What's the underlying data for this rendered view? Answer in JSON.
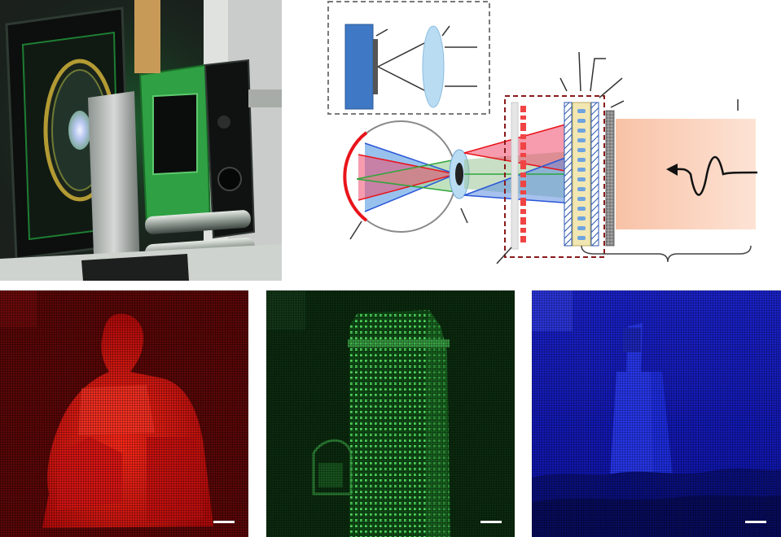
{
  "figure": {
    "panels": [
      {
        "id": "photo",
        "content": "prototype-photo"
      },
      {
        "id": "diagram",
        "content": "optical-schematic"
      },
      {
        "id": "img-red",
        "content": "statue-hologram"
      },
      {
        "id": "img-green",
        "content": "skyscraper-hologram"
      },
      {
        "id": "img-blue",
        "content": "lighthouse-hologram"
      }
    ]
  },
  "colors": {
    "red_channel": "#e8141a",
    "green_channel": "#2fa53b",
    "blue_channel": "#1a2cf0",
    "laser_beam": "#f9c9b0",
    "camera_body": "#3f78c4",
    "lens": "#b9dcf3",
    "dashed_box": "#8a1a1a",
    "scale_bar": "#ffffff"
  }
}
